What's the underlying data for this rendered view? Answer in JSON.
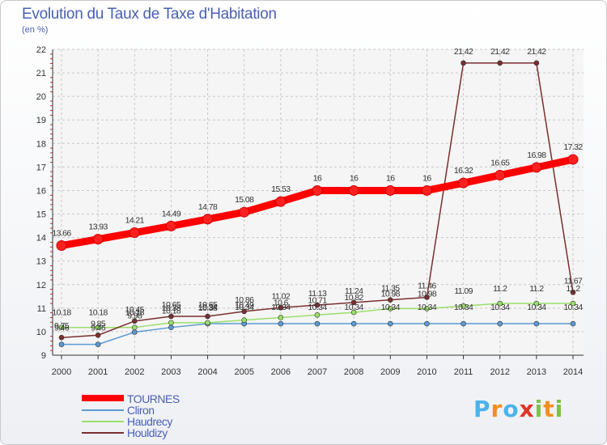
{
  "chart_data": {
    "type": "line",
    "title": "Evolution du Taux de Taxe d'Habitation",
    "unit_label": "(en %)",
    "x": [
      "2000",
      "2001",
      "2002",
      "2003",
      "2004",
      "2005",
      "2006",
      "2007",
      "2008",
      "2009",
      "2010",
      "2011",
      "2012",
      "2013",
      "2014"
    ],
    "ylim": [
      9,
      22
    ],
    "yticks": [
      "9",
      "10",
      "11",
      "12",
      "13",
      "14",
      "15",
      "16",
      "17",
      "18",
      "19",
      "20",
      "21",
      "22"
    ],
    "grid": true,
    "legend_position": "bottom-left",
    "series": [
      {
        "name": "TOURNES",
        "color": "#ff0000",
        "values": [
          13.66,
          13.93,
          14.21,
          14.49,
          14.78,
          15.08,
          15.53,
          16,
          16,
          16,
          16,
          16.32,
          16.65,
          16.98,
          17.32
        ],
        "labels": [
          "13.66",
          "13.93",
          "14.21",
          "14.49",
          "14.78",
          "15.08",
          "15.53",
          "16",
          "16",
          "16",
          "16",
          "16.32",
          "16.65",
          "16.98",
          "17.32"
        ]
      },
      {
        "name": "Cliron",
        "color": "#5b9bd5",
        "values": [
          9.46,
          9.46,
          9.98,
          10.18,
          10.34,
          10.34,
          10.34,
          10.34,
          10.34,
          10.34,
          10.34,
          10.34,
          10.34,
          10.34,
          10.34
        ],
        "labels": [
          "9.46",
          "9.46",
          "9.98",
          "10.18",
          "10.34",
          "10.34",
          "10.34",
          "10.34",
          "10.34",
          "10.34",
          "10.34",
          "10.34",
          "10.34",
          "10.34",
          "10.34"
        ]
      },
      {
        "name": "Haudrecy",
        "color": "#99e06a",
        "values": [
          10.18,
          10.18,
          10.18,
          10.38,
          10.38,
          10.49,
          10.6,
          10.71,
          10.82,
          10.98,
          10.98,
          11.09,
          11.2,
          11.2,
          11.2
        ],
        "labels": [
          "10.18",
          "10.18",
          "10.18",
          "10.38",
          "10.38",
          "10.49",
          "10.6",
          "10.71",
          "10.82",
          "10.98",
          "10.98",
          "11.09",
          "11.2",
          "11.2",
          "11.2"
        ]
      },
      {
        "name": "Houldizy",
        "color": "#7a2f2f",
        "values": [
          9.75,
          9.85,
          10.45,
          10.65,
          10.65,
          10.86,
          11.02,
          11.13,
          11.24,
          11.35,
          11.46,
          21.42,
          21.42,
          21.42,
          11.67
        ],
        "labels": [
          "9.75",
          "9.85",
          "10.45",
          "10.65",
          "10.65",
          "10.86",
          "11.02",
          "11.13",
          "11.24",
          "11.35",
          "11.46",
          "21.42",
          "21.42",
          "21.42",
          "11.67"
        ]
      }
    ]
  },
  "logo": {
    "parts": [
      "P",
      "r",
      "o",
      "x",
      "i",
      "t",
      "i"
    ]
  }
}
